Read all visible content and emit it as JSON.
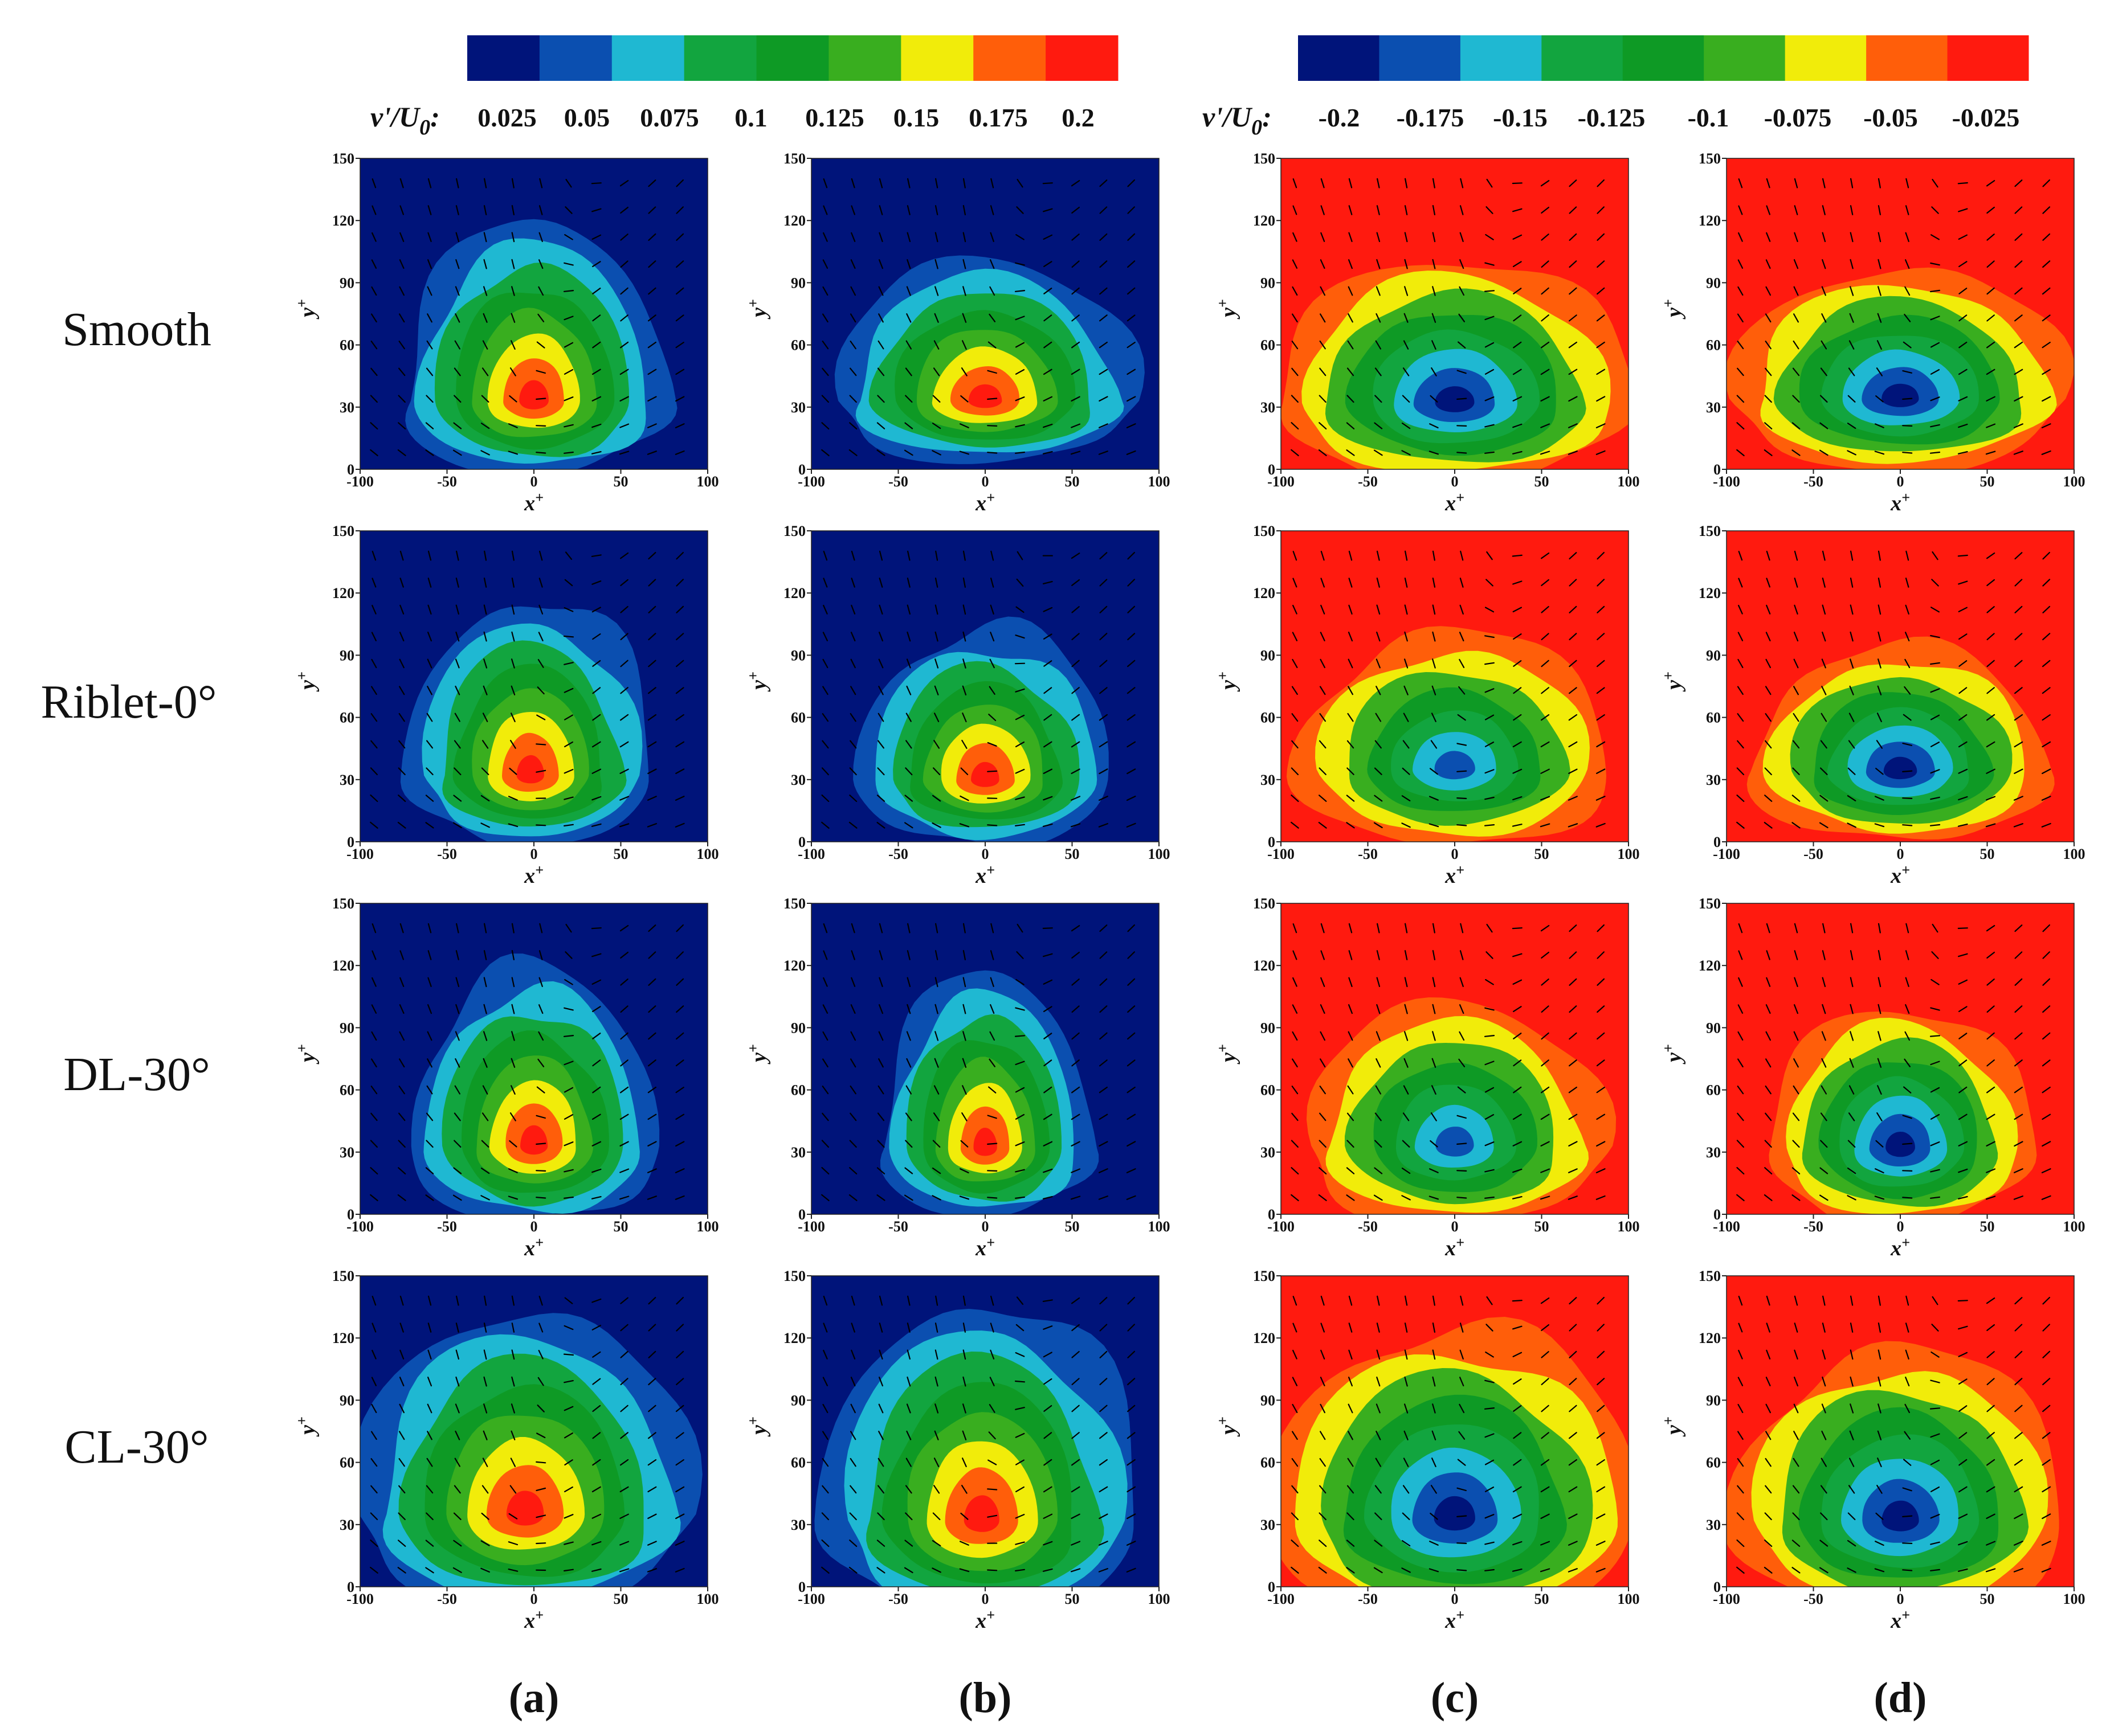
{
  "chart_data": {
    "type": "heatmap",
    "description_free": true,
    "colorbars": [
      {
        "id": "positive",
        "label_main": "v'/U",
        "label_sub": "0",
        "label_suffix": ":",
        "tick_labels": [
          "0.025",
          "0.05",
          "0.075",
          "0.1",
          "0.125",
          "0.15",
          "0.175",
          "0.2"
        ],
        "colors": [
          "#00147a",
          "#0b4fb0",
          "#1fb8d2",
          "#12a53f",
          "#0e9a25",
          "#39ae1f",
          "#f1ec0a",
          "#ff5e0a",
          "#ff1a0f"
        ]
      },
      {
        "id": "negative",
        "label_main": "v'/U",
        "label_sub": "0",
        "label_suffix": ":",
        "tick_labels": [
          "-0.2",
          "-0.175",
          "-0.15",
          "-0.125",
          "-0.1",
          "-0.075",
          "-0.05",
          "-0.025"
        ],
        "colors": [
          "#00147a",
          "#0b4fb0",
          "#1fb8d2",
          "#12a53f",
          "#0e9a25",
          "#39ae1f",
          "#f1ec0a",
          "#ff5e0a",
          "#ff1a0f"
        ]
      }
    ],
    "rows": [
      "Smooth",
      "Riblet-0°",
      "DL-30°",
      "CL-30°"
    ],
    "columns": [
      "(a)",
      "(b)",
      "(c)",
      "(d)"
    ],
    "column_colorbar": [
      "positive",
      "positive",
      "negative",
      "negative"
    ],
    "axes": {
      "xlabel": "x",
      "ylabel": "y",
      "label_sup": "+",
      "xlim": [
        -100,
        100
      ],
      "ylim": [
        0,
        150
      ],
      "xticks": [
        -100,
        -50,
        0,
        50,
        100
      ],
      "yticks": [
        0,
        30,
        60,
        90,
        120,
        150
      ],
      "xtick_labels": [
        "-100",
        "-50",
        "0",
        "50",
        "100"
      ],
      "ytick_labels": [
        "0",
        "30",
        "60",
        "90",
        "120",
        "150"
      ]
    },
    "panels": [
      {
        "row": 0,
        "col": 0,
        "center": [
          0,
          33
        ],
        "peak_level": 8,
        "extent": [
          75,
          66
        ],
        "stretch_up": 1.35
      },
      {
        "row": 0,
        "col": 1,
        "center": [
          0,
          33
        ],
        "peak_level": 8,
        "extent": [
          85,
          55
        ],
        "stretch_up": 1.3
      },
      {
        "row": 0,
        "col": 2,
        "center": [
          0,
          32
        ],
        "peak_level": 8,
        "extent": [
          100,
          72
        ],
        "stretch_up": 1.0
      },
      {
        "row": 0,
        "col": 3,
        "center": [
          0,
          34
        ],
        "peak_level": 8,
        "extent": [
          95,
          65
        ],
        "stretch_up": 1.0
      },
      {
        "row": 1,
        "col": 0,
        "center": [
          -2,
          32
        ],
        "peak_level": 8,
        "extent": [
          70,
          62
        ],
        "stretch_up": 1.4
      },
      {
        "row": 1,
        "col": 1,
        "center": [
          0,
          30
        ],
        "peak_level": 8,
        "extent": [
          72,
          58
        ],
        "stretch_up": 1.3
      },
      {
        "row": 1,
        "col": 2,
        "center": [
          0,
          35
        ],
        "peak_level": 7,
        "extent": [
          90,
          68
        ],
        "stretch_up": 1.0
      },
      {
        "row": 1,
        "col": 3,
        "center": [
          0,
          34
        ],
        "peak_level": 8,
        "extent": [
          85,
          62
        ],
        "stretch_up": 1.0
      },
      {
        "row": 2,
        "col": 0,
        "center": [
          0,
          33
        ],
        "peak_level": 8,
        "extent": [
          70,
          68
        ],
        "stretch_up": 1.3
      },
      {
        "row": 2,
        "col": 1,
        "center": [
          0,
          32
        ],
        "peak_level": 8,
        "extent": [
          60,
          62
        ],
        "stretch_up": 1.4
      },
      {
        "row": 2,
        "col": 2,
        "center": [
          0,
          33
        ],
        "peak_level": 7,
        "extent": [
          85,
          72
        ],
        "stretch_up": 1.0
      },
      {
        "row": 2,
        "col": 3,
        "center": [
          0,
          32
        ],
        "peak_level": 8,
        "extent": [
          75,
          70
        ],
        "stretch_up": 1.0
      },
      {
        "row": 3,
        "col": 0,
        "center": [
          -5,
          35
        ],
        "peak_level": 8,
        "extent": [
          95,
          88
        ],
        "stretch_up": 1.15
      },
      {
        "row": 3,
        "col": 1,
        "center": [
          -2,
          32
        ],
        "peak_level": 8,
        "extent": [
          90,
          90
        ],
        "stretch_up": 1.2
      },
      {
        "row": 3,
        "col": 2,
        "center": [
          0,
          33
        ],
        "peak_level": 8,
        "extent": [
          105,
          95
        ],
        "stretch_up": 1.0
      },
      {
        "row": 3,
        "col": 3,
        "center": [
          0,
          32
        ],
        "peak_level": 8,
        "extent": [
          95,
          85
        ],
        "stretch_up": 1.0
      }
    ]
  }
}
